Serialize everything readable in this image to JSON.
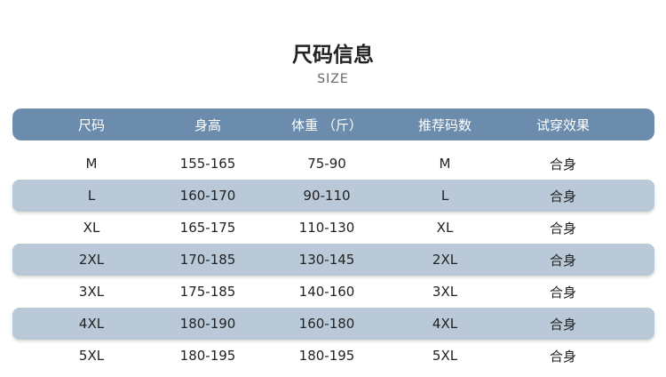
{
  "title": "尺码信息",
  "subtitle": "SIZE",
  "headers": [
    "尺码",
    "身高",
    "体重 （斤）",
    "推荐码数",
    "试穿效果"
  ],
  "rows": [
    [
      "M",
      "155-165",
      "75-90",
      "M",
      "合身"
    ],
    [
      "L",
      "160-170",
      "90-110",
      "L",
      "合身"
    ],
    [
      "XL",
      "165-175",
      "110-130",
      "XL",
      "合身"
    ],
    [
      "2XL",
      "170-185",
      "130-145",
      "2XL",
      "合身"
    ],
    [
      "3XL",
      "175-185",
      "140-160",
      "3XL",
      "合身"
    ],
    [
      "4XL",
      "180-190",
      "160-180",
      "4XL",
      "合身"
    ],
    [
      "5XL",
      "180-195",
      "180-195",
      "5XL",
      "合身"
    ]
  ],
  "colors": {
    "header": "#6b8cac",
    "stripe": "#b9c9d7"
  }
}
